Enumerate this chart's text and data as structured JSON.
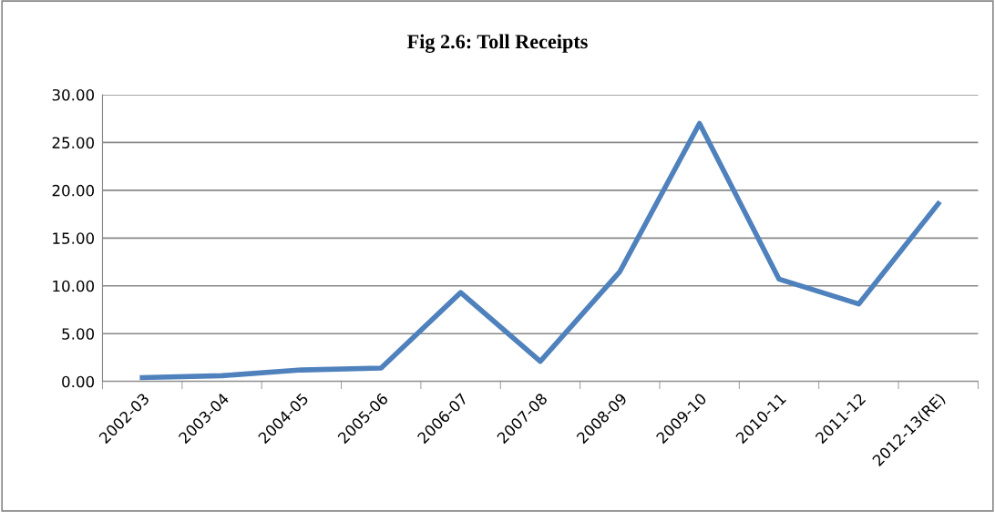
{
  "chart_data": {
    "type": "line",
    "title": "Fig 2.6: Toll Receipts",
    "categories": [
      "2002-03",
      "2003-04",
      "2004-05",
      "2005-06",
      "2006-07",
      "2007-08",
      "2008-09",
      "2009-10",
      "2010-11",
      "2011-12",
      "2012-13(RE)"
    ],
    "series": [
      {
        "color": "#4f81bd",
        "values": [
          0.4,
          0.6,
          1.2,
          1.4,
          9.3,
          2.1,
          11.5,
          27.0,
          10.7,
          8.1,
          18.6
        ]
      }
    ],
    "ylim": [
      0,
      30
    ],
    "yticks": [
      {
        "value": 0,
        "label": "0.00"
      },
      {
        "value": 5,
        "label": "5.00"
      },
      {
        "value": 10,
        "label": "10.00"
      },
      {
        "value": 15,
        "label": "15.00"
      },
      {
        "value": 20,
        "label": "20.00"
      },
      {
        "value": 25,
        "label": "25.00"
      },
      {
        "value": 30,
        "label": "30.00"
      }
    ],
    "grid": "y",
    "marker": "none",
    "line_style": "solid"
  }
}
